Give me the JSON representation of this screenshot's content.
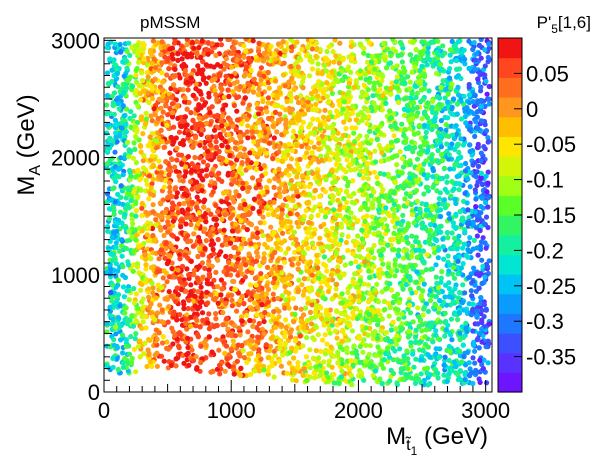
{
  "chart_data": {
    "type": "scatter",
    "title_left": "pMSSM",
    "title_right": {
      "base": "P'",
      "sub": "5",
      "rest": "[1,6]"
    },
    "x_axis": {
      "label": {
        "main": "M",
        "sub": "t̃",
        "subsub": "1",
        "unit": " (GeV)"
      },
      "range": [
        0,
        3050
      ],
      "ticks": [
        0,
        1000,
        2000,
        3000
      ],
      "tick_labels": [
        "0",
        "1000",
        "2000",
        "3000"
      ]
    },
    "y_axis": {
      "label": {
        "main": "M",
        "sub": "A",
        "unit": " (GeV)"
      },
      "range": [
        0,
        3020
      ],
      "ticks": [
        0,
        1000,
        2000,
        3000
      ],
      "tick_labels": [
        "0",
        "1000",
        "2000",
        "3000"
      ]
    },
    "colorbar": {
      "range": [
        -0.4,
        0.1
      ],
      "ticks": [
        0.05,
        0,
        -0.05,
        -0.1,
        -0.15,
        -0.2,
        -0.25,
        -0.3,
        -0.35
      ],
      "tick_labels": [
        "0.05",
        "0",
        "-0.05",
        "-0.1",
        "-0.15",
        "-0.2",
        "-0.25",
        "-0.3",
        "-0.35"
      ],
      "colors": [
        "#6e14ff",
        "#5a32ff",
        "#3c50ff",
        "#1e78ff",
        "#0a9bff",
        "#00c3f5",
        "#00e6d2",
        "#14f0a0",
        "#32f564",
        "#5aff28",
        "#a0ff14",
        "#d2f50a",
        "#ffe600",
        "#ffbe00",
        "#ff961e",
        "#ff6e1e",
        "#ff461e",
        "#f01414"
      ]
    },
    "point_trend": [
      {
        "x": 150,
        "value": -0.22
      },
      {
        "x": 300,
        "value": -0.05
      },
      {
        "x": 600,
        "value": 0.075
      },
      {
        "x": 1000,
        "value": 0.04
      },
      {
        "x": 1500,
        "value": -0.03
      },
      {
        "x": 2000,
        "value": -0.09
      },
      {
        "x": 2500,
        "value": -0.16
      },
      {
        "x": 2800,
        "value": -0.22
      },
      {
        "x": 2950,
        "value": -0.32
      }
    ],
    "grid": false
  }
}
